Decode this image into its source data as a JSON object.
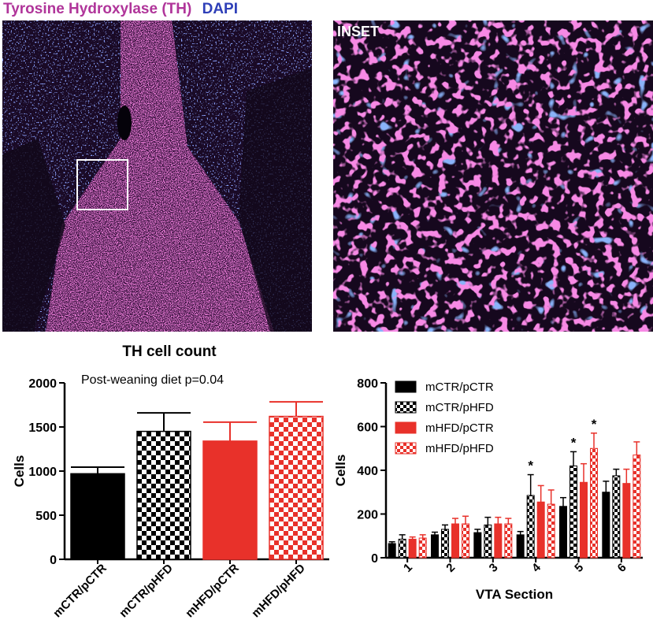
{
  "header": {
    "th_label": "Tyrosine Hydroxylase (TH)",
    "dapi_label": "DAPI"
  },
  "inset_label": "INSET",
  "colors": {
    "th": "#b0359a",
    "dapi": "#2e3fb8",
    "black": "#000000",
    "red": "#e8312a"
  },
  "chart_data": [
    {
      "type": "bar",
      "title": "TH cell count",
      "annotation": "Post-weaning diet p=0.04",
      "ylabel": "Cells",
      "xlabel": "",
      "ylim": [
        0,
        2000
      ],
      "yticks": [
        0,
        500,
        1000,
        1500,
        2000
      ],
      "categories": [
        "mCTR/pCTR",
        "mCTR/pHFD",
        "mHFD/pCTR",
        "mHFD/pHFD"
      ],
      "values": [
        970,
        1450,
        1340,
        1620
      ],
      "errors": [
        75,
        210,
        215,
        165
      ],
      "styles": [
        "black",
        "black-check",
        "red",
        "red-check"
      ]
    },
    {
      "type": "bar",
      "xlabel": "VTA Section",
      "ylabel": "Cells",
      "ylim": [
        0,
        800
      ],
      "yticks": [
        0,
        200,
        400,
        600,
        800
      ],
      "categories": [
        "1",
        "2",
        "3",
        "4",
        "5",
        "6"
      ],
      "legend_position": "top-left",
      "series": [
        {
          "name": "mCTR/pCTR",
          "style": "black",
          "values": [
            65,
            105,
            115,
            105,
            235,
            300
          ],
          "errors": [
            8,
            12,
            15,
            15,
            40,
            50
          ]
        },
        {
          "name": "mCTR/pHFD",
          "style": "black-check",
          "values": [
            85,
            130,
            150,
            285,
            420,
            375
          ],
          "errors": [
            20,
            20,
            35,
            95,
            65,
            30
          ]
        },
        {
          "name": "mHFD/pCTR",
          "style": "red",
          "values": [
            85,
            155,
            155,
            255,
            345,
            340
          ],
          "errors": [
            10,
            25,
            30,
            75,
            85,
            65
          ]
        },
        {
          "name": "mHFD/pHFD",
          "style": "red-check",
          "values": [
            90,
            155,
            155,
            245,
            500,
            470
          ],
          "errors": [
            15,
            35,
            25,
            65,
            70,
            60
          ]
        }
      ],
      "significance": [
        {
          "series": 1,
          "category": 3,
          "label": "*"
        },
        {
          "series": 1,
          "category": 4,
          "label": "*"
        },
        {
          "series": 3,
          "category": 4,
          "label": "*"
        }
      ]
    }
  ]
}
